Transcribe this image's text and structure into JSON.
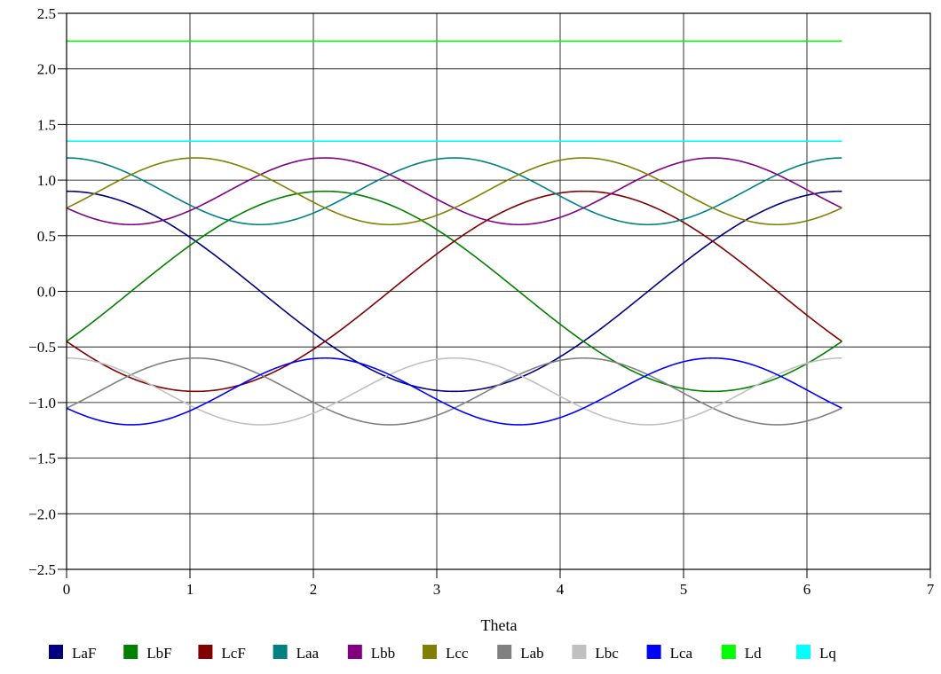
{
  "chart_data": {
    "type": "line",
    "title": "",
    "xlabel": "Theta",
    "ylabel": "",
    "xlim": [
      0,
      7
    ],
    "ylim": [
      -2.5,
      2.5
    ],
    "xticks": [
      0,
      1,
      2,
      3,
      4,
      5,
      6,
      7
    ],
    "xtick_labels": [
      "0",
      "1",
      "2",
      "3",
      "4",
      "5",
      "6",
      "7"
    ],
    "yticks": [
      -2.5,
      -2.0,
      -1.5,
      -1.0,
      -0.5,
      0.0,
      0.5,
      1.0,
      1.5,
      2.0,
      2.5
    ],
    "ytick_labels": [
      "−2.5",
      "−2.0",
      "−1.5",
      "−1.0",
      "−0.5",
      "0.0",
      "0.5",
      "1.0",
      "1.5",
      "2.0",
      "2.5"
    ],
    "grid": true,
    "legend_position": "bottom",
    "x_range": [
      0,
      6.2832
    ],
    "sample_x": [
      0,
      0.5236,
      1.0472,
      1.5708,
      2.0944,
      2.618,
      3.1416,
      3.6652,
      4.1888,
      4.7124,
      5.236,
      5.7596,
      6.2832
    ],
    "series": [
      {
        "name": "LaF",
        "color": "#000080",
        "formula": "0.9*cos(x)",
        "values": [
          0.9,
          0.78,
          0.45,
          0.0,
          -0.45,
          -0.78,
          -0.9,
          -0.78,
          -0.45,
          0.0,
          0.45,
          0.78,
          0.9
        ]
      },
      {
        "name": "LbF",
        "color": "#008000",
        "formula": "0.9*cos(x-2.0944)",
        "values": [
          -0.45,
          0.0,
          0.45,
          0.78,
          0.9,
          0.78,
          0.45,
          0.0,
          -0.45,
          -0.78,
          -0.9,
          -0.78,
          -0.45
        ]
      },
      {
        "name": "LcF",
        "color": "#800000",
        "formula": "0.9*cos(x+2.0944)",
        "values": [
          -0.45,
          -0.78,
          -0.9,
          -0.78,
          -0.45,
          0.0,
          0.45,
          0.78,
          0.9,
          0.78,
          0.45,
          0.0,
          -0.45
        ]
      },
      {
        "name": "Laa",
        "color": "#008080",
        "formula": "0.9+0.3*cos(2*x)",
        "values": [
          1.2,
          1.05,
          0.75,
          0.6,
          0.75,
          1.05,
          1.2,
          1.05,
          0.75,
          0.6,
          0.75,
          1.05,
          1.2
        ]
      },
      {
        "name": "Lbb",
        "color": "#800080",
        "formula": "0.9+0.3*cos(2*x-4.1888)",
        "values": [
          0.75,
          0.6,
          0.75,
          1.05,
          1.2,
          1.05,
          0.75,
          0.6,
          0.75,
          1.05,
          1.2,
          1.05,
          0.75
        ]
      },
      {
        "name": "Lcc",
        "color": "#808000",
        "formula": "0.9+0.3*cos(2*x+4.1888)",
        "values": [
          0.75,
          1.05,
          1.2,
          1.05,
          0.75,
          0.6,
          0.75,
          1.05,
          1.2,
          1.05,
          0.75,
          0.6,
          0.75
        ]
      },
      {
        "name": "Lab",
        "color": "#808080",
        "formula": "-0.9+0.3*cos(2*x-2.0944)",
        "values": [
          -1.05,
          -0.75,
          -0.6,
          -0.75,
          -1.05,
          -1.2,
          -1.05,
          -0.75,
          -0.6,
          -0.75,
          -1.05,
          -1.2,
          -1.05
        ]
      },
      {
        "name": "Lbc",
        "color": "#c0c0c0",
        "formula": "-0.9+0.3*cos(2*x)",
        "values": [
          -0.6,
          -0.75,
          -1.05,
          -1.2,
          -1.05,
          -0.75,
          -0.6,
          -0.75,
          -1.05,
          -1.2,
          -1.05,
          -0.75,
          -0.6
        ]
      },
      {
        "name": "Lca",
        "color": "#0000ff",
        "formula": "-0.9+0.3*cos(2*x+2.0944)",
        "values": [
          -1.05,
          -1.2,
          -1.05,
          -0.75,
          -0.6,
          -0.75,
          -1.05,
          -1.2,
          -1.05,
          -0.75,
          -0.6,
          -0.75,
          -1.05
        ]
      },
      {
        "name": "Ld",
        "color": "#00ff00",
        "formula": "2.25",
        "values": [
          2.25,
          2.25,
          2.25,
          2.25,
          2.25,
          2.25,
          2.25,
          2.25,
          2.25,
          2.25,
          2.25,
          2.25,
          2.25
        ]
      },
      {
        "name": "Lq",
        "color": "#00ffff",
        "formula": "1.35",
        "values": [
          1.35,
          1.35,
          1.35,
          1.35,
          1.35,
          1.35,
          1.35,
          1.35,
          1.35,
          1.35,
          1.35,
          1.35,
          1.35
        ]
      }
    ]
  }
}
